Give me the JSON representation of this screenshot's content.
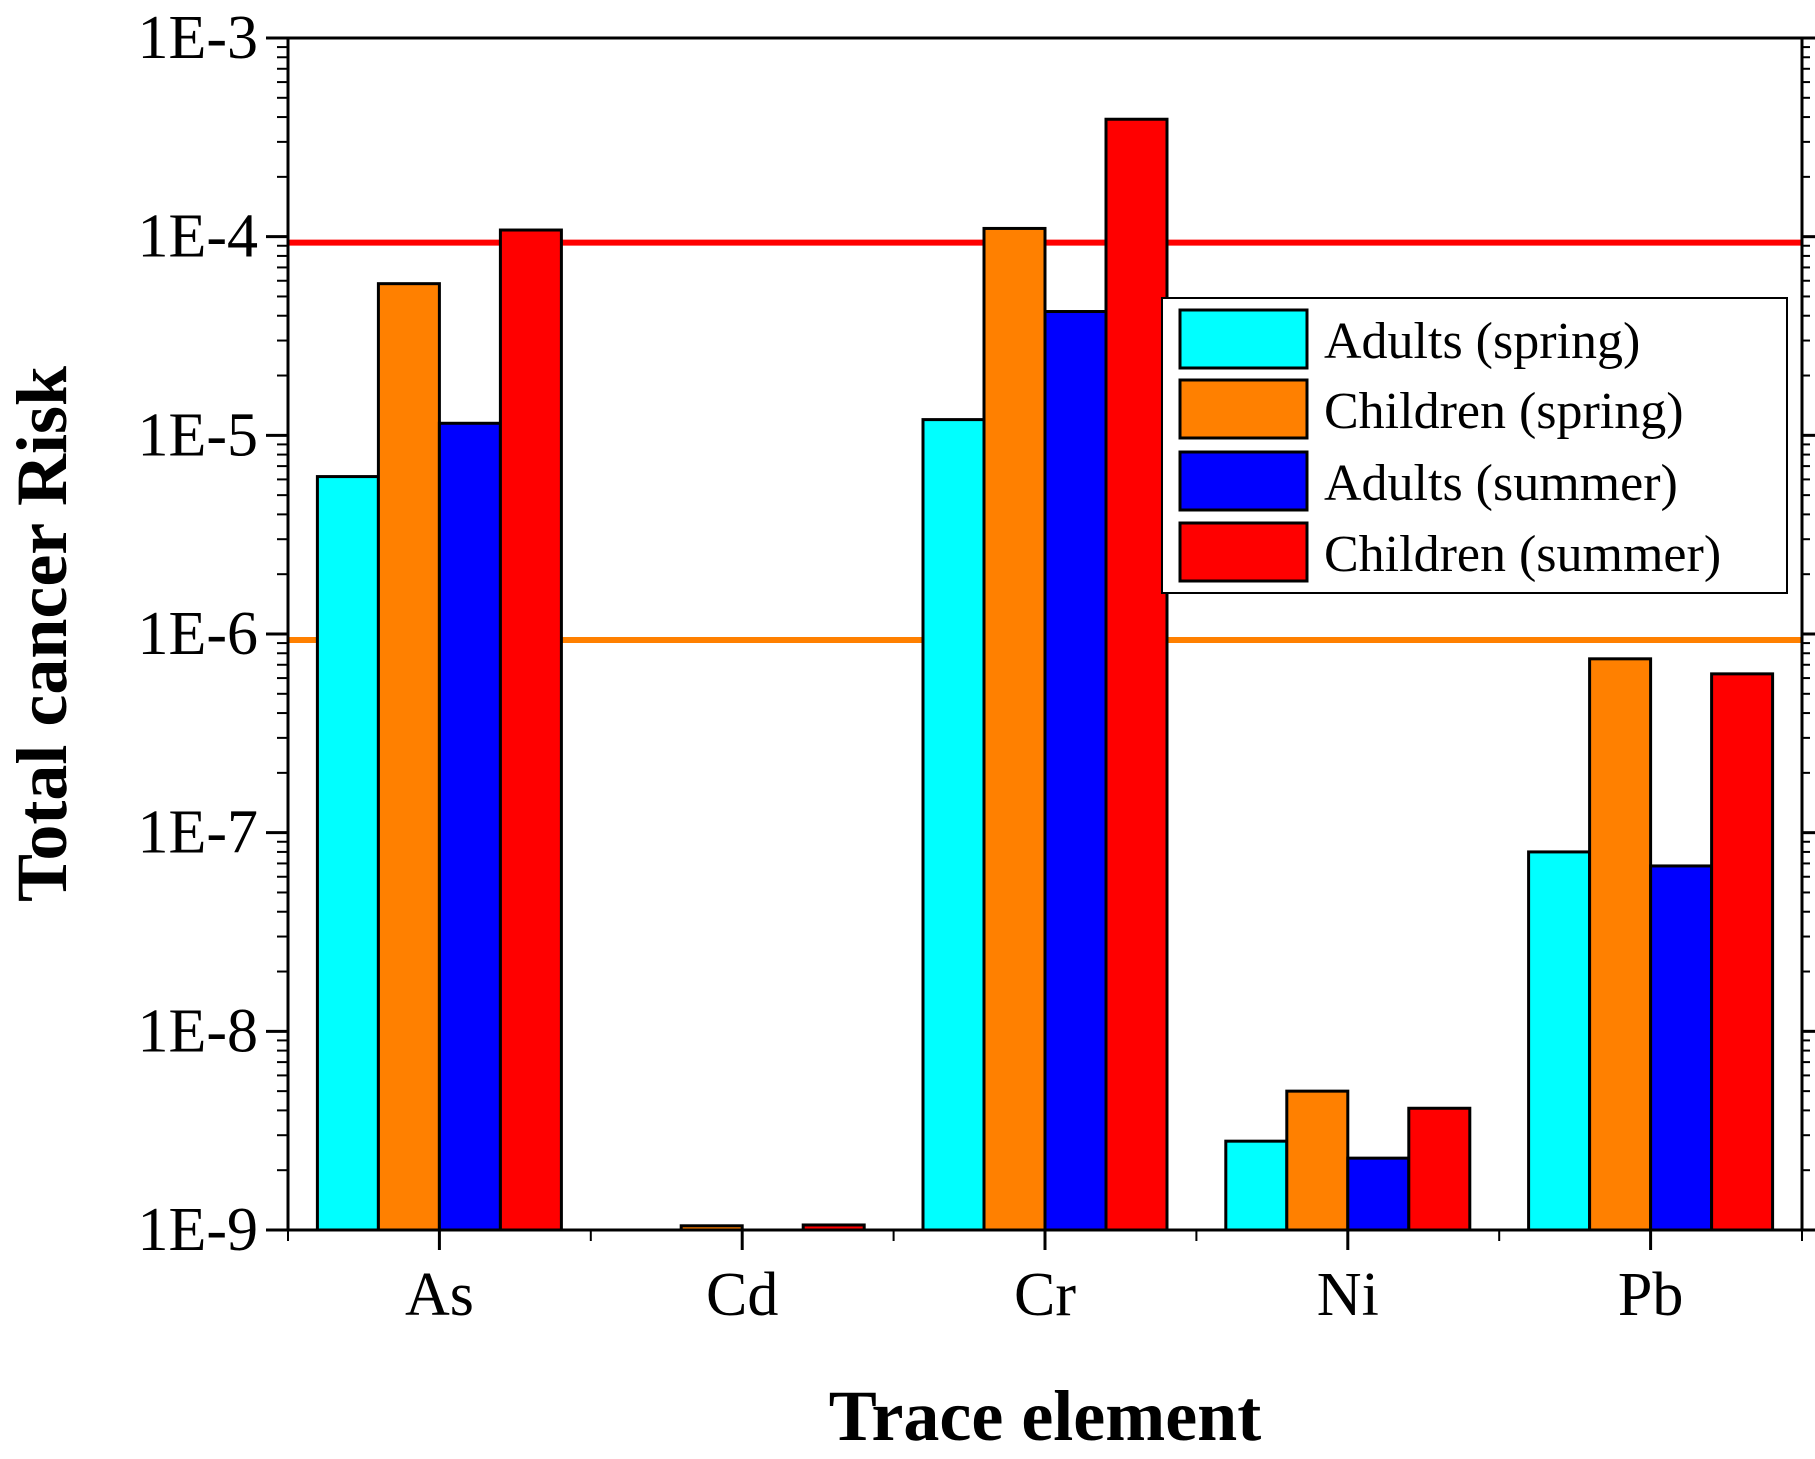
{
  "chart_data": {
    "type": "bar",
    "scale": "log10",
    "xlabel": "Trace element",
    "ylabel": "Total cancer Risk",
    "categories": [
      "As",
      "Cd",
      "Cr",
      "Ni",
      "Pb"
    ],
    "ylim": [
      1e-09,
      0.001
    ],
    "ytick_values": [
      1e-09,
      1e-08,
      1e-07,
      1e-06,
      1e-05,
      0.0001,
      0.001
    ],
    "ytick_labels": [
      "1E-9",
      "1E-8",
      "1E-7",
      "1E-6",
      "1E-5",
      "1E-4",
      "1E-3"
    ],
    "series": [
      {
        "name": "Adults (spring)",
        "color": "#00ffff",
        "values": [
          6.2e-06,
          1e-09,
          1.2e-05,
          2.8e-09,
          8e-08
        ]
      },
      {
        "name": "Children (spring)",
        "color": "#ff8000",
        "values": [
          5.8e-05,
          1.05e-09,
          0.00011,
          5e-09,
          7.5e-07
        ]
      },
      {
        "name": "Adults (summer)",
        "color": "#0000ff",
        "values": [
          1.15e-05,
          1e-09,
          4.2e-05,
          2.3e-09,
          6.8e-08
        ]
      },
      {
        "name": "Children (summer)",
        "color": "#ff0000",
        "values": [
          0.000108,
          1.06e-09,
          0.00039,
          4.1e-09,
          6.3e-07
        ]
      }
    ],
    "reference_lines": [
      {
        "value": 0.0001,
        "color": "#ff0000"
      },
      {
        "value": 1e-06,
        "color": "#ff8000"
      }
    ],
    "legend_position": "top-right",
    "grid": false
  }
}
